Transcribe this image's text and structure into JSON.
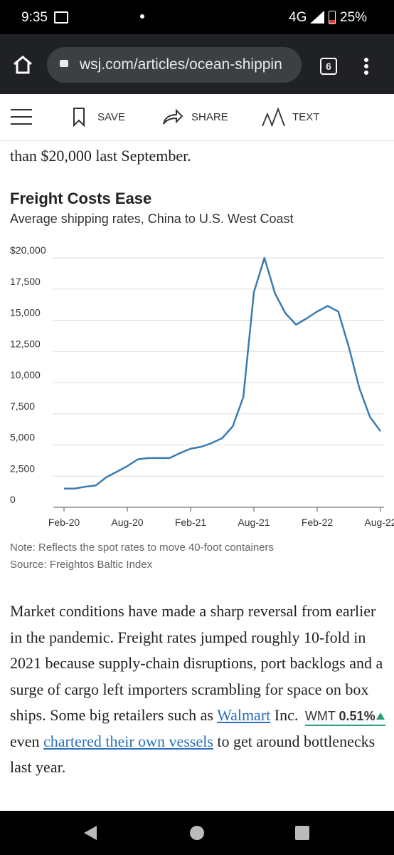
{
  "status_bar": {
    "time": "9:35",
    "network": "4G",
    "battery": "25%"
  },
  "browser": {
    "url": "wsj.com/articles/ocean-shippin",
    "tab_count": "6"
  },
  "toolbar": {
    "save": "SAVE",
    "share": "SHARE",
    "text": "TEXT"
  },
  "article": {
    "lead": "than $20,000 last September.",
    "paragraph": {
      "text1": "Market conditions have made a sharp reversal from earlier in the pandemic. Freight rates jumped roughly 10-fold in 2021 because supply-chain disruptions, port backlogs and a surge of cargo left importers scrambling for space on box ships. Some big retailers such as ",
      "link1": "Walmart",
      "text2": " Inc. ",
      "ticker_symbol": "WMT",
      "ticker_change": "0.51%",
      "text3": " even ",
      "link2": "chartered their own vessels",
      "text4": " to get around bottlenecks last year."
    }
  },
  "chart_data": {
    "type": "line",
    "title": "Freight Costs Ease",
    "subtitle": "Average shipping rates, China to U.S. West Coast",
    "categories": [
      "Feb-20",
      null,
      null,
      null,
      null,
      null,
      "Aug-20",
      null,
      null,
      null,
      null,
      null,
      "Feb-21",
      null,
      null,
      null,
      null,
      null,
      "Aug-21",
      null,
      null,
      null,
      null,
      null,
      "Feb-22",
      null,
      null,
      null,
      null,
      null,
      "Aug-22"
    ],
    "values": [
      1500,
      1500,
      1650,
      1750,
      2400,
      2850,
      3300,
      3850,
      3950,
      3950,
      3950,
      4350,
      4700,
      4850,
      5150,
      5550,
      6500,
      8850,
      17250,
      20000,
      17150,
      15550,
      14650,
      15150,
      15700,
      16150,
      15700,
      12850,
      9550,
      7250,
      6100
    ],
    "color": "#3a7cb0",
    "ylim": [
      0,
      20000
    ],
    "yticks": [
      0,
      {
        "value": 2500,
        "label": "2,500"
      },
      {
        "value": 5000,
        "label": "5,000"
      },
      {
        "value": 7500,
        "label": "7,500"
      },
      {
        "value": 10000,
        "label": "10,000"
      },
      {
        "value": 12500,
        "label": "12,500"
      },
      {
        "value": 15000,
        "label": "15,000"
      },
      {
        "value": 17500,
        "label": "17,500"
      },
      {
        "value": 20000,
        "label": "$20,000"
      }
    ],
    "grid": true,
    "note": "Note: Reflects the spot rates to move 40-foot containers",
    "source": "Source: Freightos Baltic Index"
  }
}
